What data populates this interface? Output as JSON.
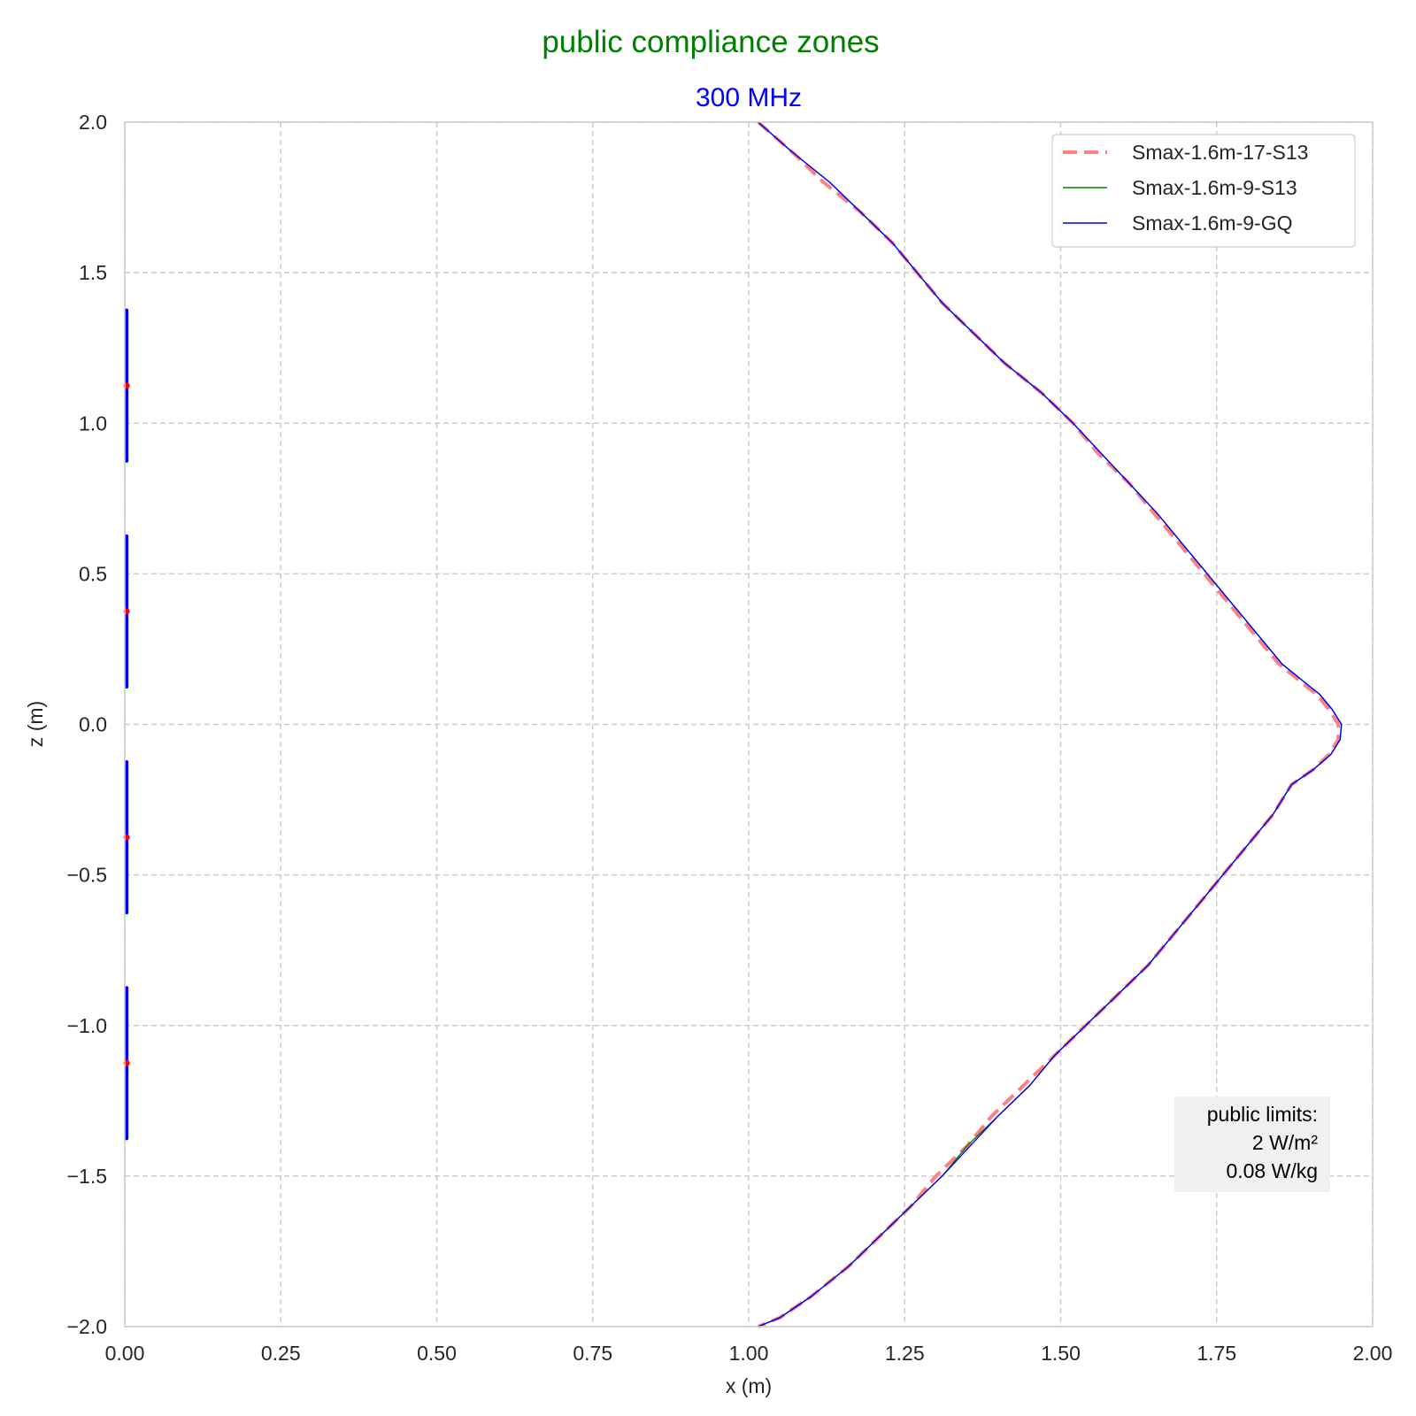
{
  "chart_data": {
    "type": "line",
    "suptitle": "public compliance zones",
    "title": "300 MHz",
    "xlabel": "x (m)",
    "ylabel": "z (m)",
    "xlim": [
      0,
      2
    ],
    "ylim": [
      -2,
      2
    ],
    "x_ticks": [
      {
        "value": 0,
        "label": "0.00"
      },
      {
        "value": 0.25,
        "label": "0.25"
      },
      {
        "value": 0.5,
        "label": "0.50"
      },
      {
        "value": 0.75,
        "label": "0.75"
      },
      {
        "value": 1.0,
        "label": "1.00"
      },
      {
        "value": 1.25,
        "label": "1.25"
      },
      {
        "value": 1.5,
        "label": "1.50"
      },
      {
        "value": 1.75,
        "label": "1.75"
      },
      {
        "value": 2.0,
        "label": "2.00"
      }
    ],
    "y_ticks": [
      {
        "value": 2.0,
        "label": "2.0"
      },
      {
        "value": 1.5,
        "label": "1.5"
      },
      {
        "value": 1.0,
        "label": "1.0"
      },
      {
        "value": 0.5,
        "label": "0.5"
      },
      {
        "value": 0.0,
        "label": "0.0"
      },
      {
        "value": -0.5,
        "label": "−0.5"
      },
      {
        "value": -1.0,
        "label": "−1.0"
      },
      {
        "value": -1.5,
        "label": "−1.5"
      },
      {
        "value": -2.0,
        "label": "−2.0"
      }
    ],
    "grid": true,
    "legend_position": "top-right",
    "series": [
      {
        "name": "Smax-1.6m-17-S13",
        "color": "#ff8080",
        "style": "dashed",
        "x": [
          1.015,
          1.07,
          1.12,
          1.18,
          1.23,
          1.27,
          1.31,
          1.36,
          1.41,
          1.47,
          1.52,
          1.56,
          1.61,
          1.65,
          1.69,
          1.73,
          1.77,
          1.81,
          1.85,
          1.88,
          1.91,
          1.93,
          1.945,
          1.945,
          1.93,
          1.905,
          1.87,
          1.84,
          1.8,
          1.76,
          1.72,
          1.68,
          1.64,
          1.59,
          1.54,
          1.49,
          1.44,
          1.39,
          1.35,
          1.3,
          1.26,
          1.21,
          1.16,
          1.1,
          1.05,
          1.015
        ],
        "y": [
          2.0,
          1.9,
          1.8,
          1.7,
          1.6,
          1.5,
          1.4,
          1.3,
          1.2,
          1.1,
          1.0,
          0.9,
          0.8,
          0.7,
          0.6,
          0.5,
          0.4,
          0.3,
          0.2,
          0.15,
          0.1,
          0.05,
          0.0,
          -0.05,
          -0.1,
          -0.15,
          -0.2,
          -0.3,
          -0.4,
          -0.5,
          -0.6,
          -0.7,
          -0.8,
          -0.9,
          -1.0,
          -1.1,
          -1.2,
          -1.3,
          -1.4,
          -1.5,
          -1.6,
          -1.7,
          -1.8,
          -1.9,
          -1.97,
          -2.0
        ]
      },
      {
        "name": "Smax-1.6m-9-S13",
        "color": "#008000",
        "style": "solid",
        "x": [
          1.015,
          1.07,
          1.13,
          1.18,
          1.23,
          1.27,
          1.31,
          1.36,
          1.41,
          1.47,
          1.52,
          1.565,
          1.61,
          1.655,
          1.695,
          1.735,
          1.775,
          1.815,
          1.855,
          1.885,
          1.915,
          1.935,
          1.95,
          1.948,
          1.933,
          1.905,
          1.87,
          1.84,
          1.8,
          1.76,
          1.72,
          1.68,
          1.64,
          1.59,
          1.54,
          1.49,
          1.45,
          1.4,
          1.35,
          1.31,
          1.26,
          1.21,
          1.16,
          1.1,
          1.05,
          1.015
        ],
        "y": [
          2.0,
          1.9,
          1.8,
          1.7,
          1.6,
          1.5,
          1.4,
          1.3,
          1.2,
          1.1,
          1.0,
          0.9,
          0.8,
          0.7,
          0.6,
          0.5,
          0.4,
          0.3,
          0.2,
          0.15,
          0.1,
          0.05,
          0.0,
          -0.05,
          -0.1,
          -0.15,
          -0.2,
          -0.3,
          -0.4,
          -0.5,
          -0.6,
          -0.7,
          -0.8,
          -0.9,
          -1.0,
          -1.1,
          -1.2,
          -1.3,
          -1.4,
          -1.5,
          -1.6,
          -1.7,
          -1.8,
          -1.9,
          -1.97,
          -2.0
        ]
      },
      {
        "name": "Smax-1.6m-9-GQ",
        "color": "#0000ff",
        "style": "solid",
        "x": [
          1.015,
          1.07,
          1.13,
          1.18,
          1.23,
          1.27,
          1.31,
          1.36,
          1.41,
          1.47,
          1.52,
          1.565,
          1.61,
          1.655,
          1.695,
          1.735,
          1.775,
          1.815,
          1.855,
          1.885,
          1.915,
          1.935,
          1.95,
          1.948,
          1.933,
          1.905,
          1.87,
          1.84,
          1.8,
          1.76,
          1.72,
          1.68,
          1.64,
          1.59,
          1.54,
          1.49,
          1.45,
          1.4,
          1.355,
          1.31,
          1.26,
          1.21,
          1.16,
          1.1,
          1.05,
          1.015
        ],
        "y": [
          2.0,
          1.9,
          1.8,
          1.7,
          1.6,
          1.5,
          1.4,
          1.3,
          1.2,
          1.1,
          1.0,
          0.9,
          0.8,
          0.7,
          0.6,
          0.5,
          0.4,
          0.3,
          0.2,
          0.15,
          0.1,
          0.05,
          0.0,
          -0.05,
          -0.1,
          -0.15,
          -0.2,
          -0.3,
          -0.4,
          -0.5,
          -0.6,
          -0.7,
          -0.8,
          -0.9,
          -1.0,
          -1.1,
          -1.2,
          -1.3,
          -1.4,
          -1.5,
          -1.6,
          -1.7,
          -1.8,
          -1.9,
          -1.97,
          -2.0
        ]
      }
    ],
    "antenna_segments": {
      "color": "#0000ff",
      "x": 0.003,
      "z_ranges": [
        [
          0.875,
          1.375
        ],
        [
          0.125,
          0.625
        ],
        [
          -0.625,
          -0.125
        ],
        [
          -1.375,
          -0.875
        ]
      ]
    },
    "feed_points": {
      "color": "#ff0000",
      "x": 0.003,
      "z": [
        1.125,
        0.375,
        -0.375,
        -1.125
      ]
    },
    "annotation": {
      "lines": [
        "public limits:",
        "2 W/m²",
        "0.08 W/kg"
      ],
      "position": "bottom-right"
    }
  }
}
